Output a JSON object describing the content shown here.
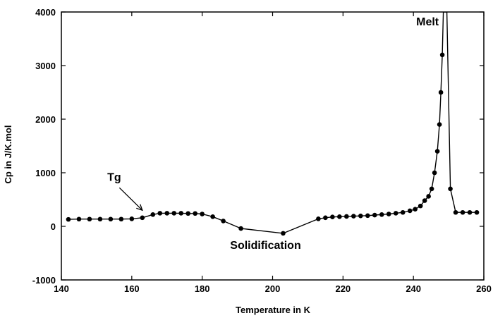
{
  "chart_data": {
    "type": "line",
    "title": "",
    "xlabel": "Temperature in K",
    "ylabel": "Cp in J/K.mol",
    "xlim": [
      140,
      260
    ],
    "ylim": [
      -1000,
      4000
    ],
    "x_ticks": [
      140,
      160,
      180,
      200,
      220,
      240,
      260
    ],
    "y_ticks": [
      -1000,
      0,
      1000,
      2000,
      3000,
      4000
    ],
    "grid": false,
    "series": [
      {
        "name": "",
        "x": [
          142,
          145,
          148,
          151,
          154,
          157,
          160,
          163,
          166,
          168,
          170,
          172,
          174,
          176,
          178,
          180,
          183,
          186,
          191,
          203,
          213,
          215,
          217,
          219,
          221,
          223,
          225,
          227,
          229,
          231,
          233,
          235,
          237,
          239,
          240.5,
          242,
          243.2,
          244.3,
          245.2,
          246,
          246.8,
          247.4,
          247.8,
          248.2
        ],
        "y": [
          130,
          135,
          135,
          135,
          135,
          135,
          140,
          160,
          220,
          245,
          245,
          245,
          245,
          240,
          240,
          230,
          180,
          100,
          -40,
          -130,
          140,
          160,
          175,
          180,
          185,
          190,
          195,
          200,
          210,
          220,
          230,
          245,
          260,
          290,
          320,
          380,
          480,
          560,
          700,
          1000,
          1400,
          1900,
          2500,
          3200
        ]
      },
      {
        "name": "",
        "x": [
          250.5,
          252,
          254,
          256,
          258
        ],
        "y": [
          700,
          260,
          260,
          260,
          260
        ]
      }
    ],
    "melt_spike": {
      "x": [
        248.2,
        248.5,
        248.8,
        249.2,
        249.5,
        250.5
      ],
      "y": [
        3200,
        4000,
        4000,
        4000,
        4000,
        700
      ]
    },
    "annotations": [
      {
        "text": "Melt",
        "x": 244,
        "y": 3750
      },
      {
        "text": "Tg",
        "x": 155,
        "y": 850
      },
      {
        "text": "Solidification",
        "x": 198,
        "y": -420
      }
    ]
  }
}
